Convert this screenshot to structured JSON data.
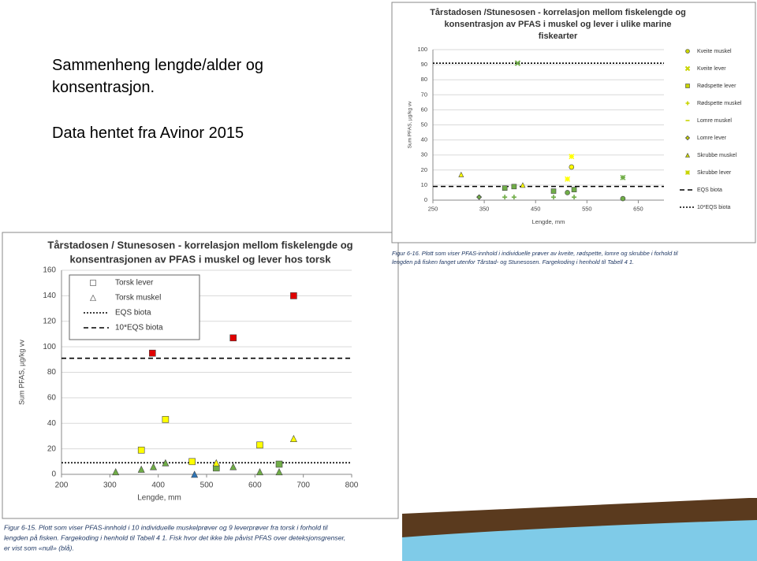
{
  "slide": {
    "lines": [
      "Sammenheng lengde/alder og",
      "konsentrasjon.",
      "Data hentet fra Avinor 2015"
    ]
  },
  "chart_data": [
    {
      "type": "scatter",
      "title": [
        "Tårstadosen / Stunesosen - korrelasjon mellom fiskelengde og",
        "konsentrasjonen av PFAS i muskel og lever hos  torsk"
      ],
      "x_label": "Lengde, mm",
      "y_label": "Sum PFAS, µg/kg vv",
      "xlim": [
        200,
        800
      ],
      "xticks": [
        200,
        300,
        400,
        500,
        600,
        700,
        800
      ],
      "ylim": [
        0,
        160
      ],
      "yticks": [
        0,
        20,
        40,
        60,
        80,
        100,
        120,
        140,
        160
      ],
      "grid": true,
      "series": [
        {
          "name": "Torsk lever",
          "marker": "square",
          "x": [
            388,
            555,
            680,
            365,
            415,
            470,
            520,
            610,
            650
          ],
          "values": [
            95,
            107,
            140,
            19,
            43,
            10,
            5,
            23,
            8
          ],
          "colors": [
            "#e00000",
            "#e00000",
            "#e00000",
            "#ffff00",
            "#ffff00",
            "#ffff00",
            "#70ad47",
            "#ffff00",
            "#70ad47"
          ]
        },
        {
          "name": "Torsk muskel",
          "marker": "triangle",
          "x": [
            312,
            365,
            390,
            415,
            475,
            520,
            555,
            610,
            650,
            680
          ],
          "values": [
            2,
            4,
            6,
            9,
            0,
            9,
            6,
            2,
            2,
            28
          ],
          "colors": [
            "#70ad47",
            "#70ad47",
            "#70ad47",
            "#70ad47",
            "#2e75b6",
            "#ffff00",
            "#70ad47",
            "#70ad47",
            "#70ad47",
            "#ffff00"
          ]
        }
      ],
      "lines": [
        {
          "name": "EQS biota",
          "value": 9.1,
          "style": "dotted"
        },
        {
          "name": "10*EQS biota",
          "value": 91,
          "style": "dashed"
        }
      ],
      "caption": [
        "Figur 6-15. Plott som viser PFAS-innhold i 10 individuelle muskelprøver og 9 leverprøver fra torsk i forhold til",
        "lengden på fisken. Fargekoding i henhold til Tabell 4 1. Fisk hvor det ikke ble påvist PFAS over deteksjonsgrenser,",
        "er vist som «null» (blå)."
      ]
    },
    {
      "type": "scatter",
      "title": [
        "Tårstadosen /Stunesosen - korrelasjon mellom fiskelengde og",
        "konsentrasjon av PFAS i muskel og lever i ulike marine",
        "fiskearter"
      ],
      "x_label": "Lengde, mm",
      "y_label": "Sum PFAS, µg/kg vv",
      "xlim": [
        250,
        700
      ],
      "xticks": [
        250,
        350,
        450,
        550,
        650
      ],
      "ylim": [
        0,
        100
      ],
      "yticks": [
        0,
        10,
        20,
        30,
        40,
        50,
        60,
        70,
        80,
        90,
        100
      ],
      "grid": true,
      "series": [
        {
          "name": "Kveite muskel",
          "marker": "circle",
          "x": [
            520,
            512,
            620
          ],
          "values": [
            22,
            5,
            1
          ],
          "colors": [
            "#ffff00",
            "#70ad47",
            "#70ad47"
          ]
        },
        {
          "name": "Kveite lever",
          "marker": "x",
          "x": [
            415
          ],
          "values": [
            91
          ],
          "colors": [
            "#70ad47"
          ]
        },
        {
          "name": "Rødspette lever",
          "marker": "square",
          "x": [
            390,
            408,
            485,
            525
          ],
          "values": [
            8,
            9,
            6,
            7
          ],
          "colors": [
            "#70ad47",
            "#70ad47",
            "#70ad47",
            "#70ad47"
          ]
        },
        {
          "name": "Rødspette muskel",
          "marker": "plus",
          "x": [
            390,
            408,
            485,
            525
          ],
          "values": [
            2,
            2,
            2,
            2
          ],
          "colors": [
            "#70ad47",
            "#70ad47",
            "#70ad47",
            "#70ad47"
          ]
        },
        {
          "name": "Lomre muskel",
          "marker": "dash",
          "x": [],
          "values": [],
          "colors": []
        },
        {
          "name": "Lomre lever",
          "marker": "diamond",
          "x": [
            340
          ],
          "values": [
            2
          ],
          "colors": [
            "#70ad47"
          ]
        },
        {
          "name": "Skrubbe muskel",
          "marker": "triangle",
          "x": [
            305,
            425
          ],
          "values": [
            17,
            10
          ],
          "colors": [
            "#ffff00",
            "#ffff00"
          ]
        },
        {
          "name": "Skrubbe lever",
          "marker": "asterisk",
          "x": [
            520,
            512,
            620
          ],
          "values": [
            29,
            14,
            15
          ],
          "colors": [
            "#ffff00",
            "#ffff00",
            "#70ad47"
          ]
        }
      ],
      "lines": [
        {
          "name": "EQS biota",
          "value": 9.1,
          "style": "dashed"
        },
        {
          "name": "10*EQS biota",
          "value": 91,
          "style": "dotted"
        }
      ],
      "caption": [
        "Figur 6-16. Plott som viser PFAS-innhold i individuelle prøver av kveite, rødspette, lomre og skrubbe i forhold til",
        "lengden på fisken fanget utenfor Tårstad- og Stunesosen. Fargekoding i henhold til Tabell 4 1."
      ]
    }
  ]
}
